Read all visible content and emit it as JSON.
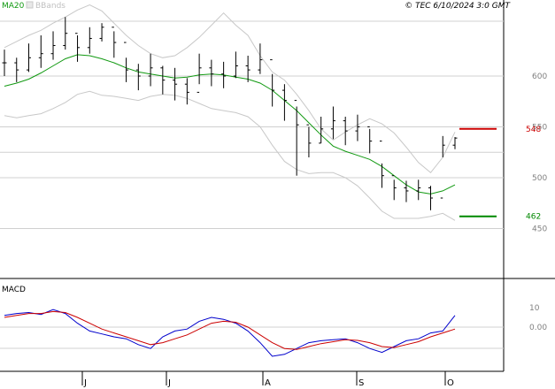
{
  "header": {
    "ma_label": "MA20",
    "bb_label": "BBands",
    "copyright": "© TEC 6/10/2024 3:0 GMT"
  },
  "macd_panel": {
    "label": "MACD"
  },
  "colors": {
    "price_bar": "#000000",
    "ma20": "#119911",
    "bbands": "#c8c8c8",
    "resistance": "#cc0000",
    "support": "#008800",
    "macd": "#0000cc",
    "signal": "#cc0000",
    "grid": "#d0d0d0",
    "frame": "#000000"
  },
  "chart_data": [
    {
      "type": "ohlc",
      "x_axis": {
        "tick_labels": [
          "J",
          "J",
          "A",
          "S",
          "O"
        ]
      },
      "y_axis": {
        "tick_labels": [
          "600",
          "550",
          "500",
          "450"
        ],
        "ticks": [
          600,
          550,
          500,
          450
        ],
        "range": [
          420,
          650
        ],
        "scale": "linear"
      },
      "grid": true,
      "series": [
        {
          "name": "MA20",
          "color": "#119911",
          "values": [
            590,
            593,
            597,
            603,
            610,
            617,
            621,
            620,
            617,
            613,
            608,
            604,
            602,
            600,
            598,
            599,
            601,
            602,
            601,
            599,
            597,
            593,
            586,
            576,
            566,
            554,
            542,
            531,
            526,
            522,
            518,
            511,
            502,
            493,
            486,
            484,
            487,
            493
          ]
        },
        {
          "name": "BBands",
          "color": "#c8c8c8",
          "upper": [
            628,
            634,
            640,
            645,
            652,
            658,
            665,
            670,
            664,
            652,
            640,
            630,
            622,
            618,
            620,
            628,
            638,
            650,
            662,
            650,
            640,
            620,
            604,
            596,
            582,
            566,
            548,
            537,
            545,
            552,
            558,
            553,
            544,
            530,
            515,
            505,
            520,
            545
          ],
          "lower": [
            561,
            559,
            561,
            563,
            568,
            574,
            582,
            585,
            581,
            580,
            578,
            576,
            580,
            582,
            581,
            578,
            573,
            568,
            566,
            564,
            560,
            550,
            532,
            516,
            508,
            504,
            505,
            505,
            500,
            492,
            480,
            467,
            460,
            460,
            460,
            462,
            465,
            458
          ]
        }
      ],
      "bars": {
        "close": [
          613,
          606,
          618,
          622,
          630,
          642,
          628,
          637,
          648,
          633,
          606,
          600,
          608,
          596,
          592,
          584,
          608,
          602,
          600,
          610,
          606,
          616,
          586,
          576,
          552,
          534,
          548,
          556,
          546,
          550,
          536,
          502,
          490,
          487,
          490,
          480,
          532,
          539
        ],
        "high": [
          626,
          618,
          632,
          640,
          644,
          658,
          640,
          648,
          652,
          644,
          618,
          612,
          622,
          610,
          608,
          598,
          622,
          616,
          614,
          624,
          620,
          632,
          602,
          592,
          570,
          550,
          560,
          570,
          560,
          562,
          548,
          514,
          498,
          497,
          498,
          492,
          541,
          540
        ],
        "low": [
          600,
          594,
          604,
          608,
          616,
          626,
          614,
          622,
          634,
          618,
          594,
          586,
          590,
          582,
          576,
          572,
          592,
          590,
          588,
          598,
          594,
          602,
          570,
          556,
          502,
          520,
          534,
          538,
          532,
          536,
          524,
          490,
          478,
          476,
          478,
          468,
          520,
          528
        ]
      },
      "levels": [
        {
          "label": "548",
          "value": 548,
          "color": "#cc0000"
        },
        {
          "label": "462",
          "value": 462,
          "color": "#008800"
        }
      ]
    },
    {
      "type": "line",
      "title": "MACD",
      "y_axis": {
        "tick_labels": [
          "10",
          "0.00"
        ],
        "ticks": [
          10,
          0
        ],
        "range": [
          -20,
          20
        ]
      },
      "series": [
        {
          "name": "MACD",
          "color": "#0000cc",
          "values": [
            6,
            7,
            7.5,
            6.5,
            9,
            7,
            2,
            -2,
            -3.5,
            -5,
            -6,
            -9,
            -11,
            -5,
            -2,
            -1,
            3,
            5,
            4,
            2,
            -2,
            -8,
            -15,
            -14,
            -11,
            -8,
            -7,
            -6.5,
            -6,
            -8,
            -11,
            -13,
            -10,
            -7,
            -6,
            -3,
            -2,
            6
          ]
        },
        {
          "name": "Signal",
          "color": "#cc0000",
          "values": [
            5,
            6,
            7,
            7,
            8,
            7.5,
            5,
            2,
            -1,
            -3,
            -5,
            -7,
            -9,
            -8,
            -6,
            -4,
            -1,
            2,
            3,
            2.5,
            0,
            -4,
            -8,
            -11,
            -11.5,
            -10,
            -8.5,
            -7.5,
            -6.5,
            -6.8,
            -8,
            -10,
            -10.5,
            -9,
            -7.5,
            -5,
            -3,
            -1
          ]
        }
      ]
    }
  ]
}
